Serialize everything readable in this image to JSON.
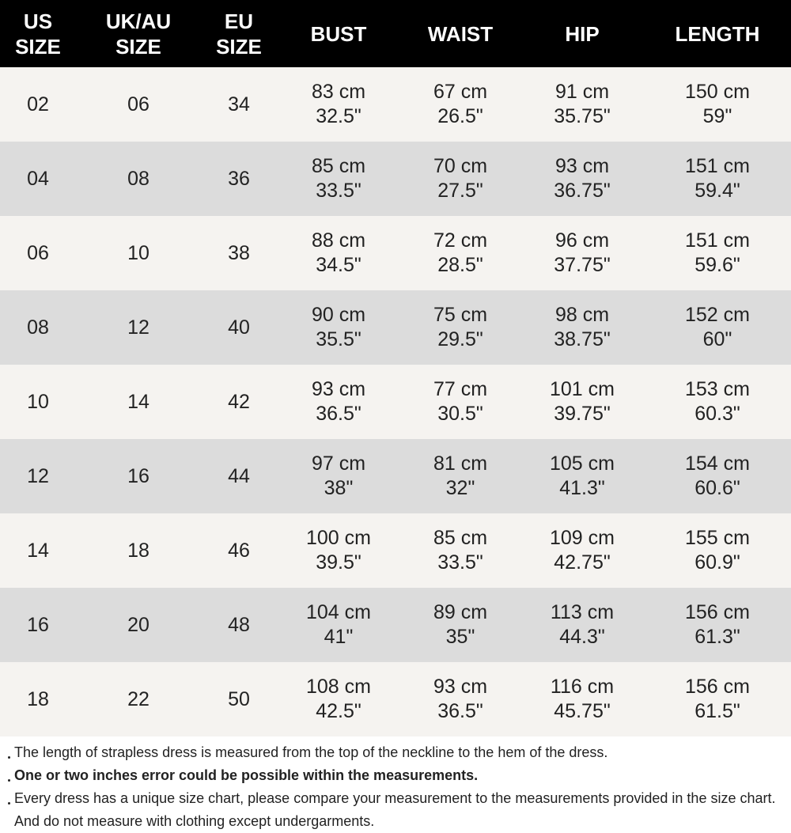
{
  "table": {
    "header": [
      "US SIZE",
      "UK/AU SIZE",
      "EU SIZE",
      "BUST",
      "WAIST",
      "HIP",
      "LENGTH"
    ],
    "rows": [
      [
        "02",
        "06",
        "34",
        [
          "83 cm",
          "32.5\""
        ],
        [
          "67 cm",
          "26.5\""
        ],
        [
          "91 cm",
          "35.75\""
        ],
        [
          "150 cm",
          "59\""
        ]
      ],
      [
        "04",
        "08",
        "36",
        [
          "85 cm",
          "33.5\""
        ],
        [
          "70 cm",
          "27.5\""
        ],
        [
          "93 cm",
          "36.75\""
        ],
        [
          "151 cm",
          "59.4\""
        ]
      ],
      [
        "06",
        "10",
        "38",
        [
          "88 cm",
          "34.5\""
        ],
        [
          "72 cm",
          "28.5\""
        ],
        [
          "96 cm",
          "37.75\""
        ],
        [
          "151 cm",
          "59.6\""
        ]
      ],
      [
        "08",
        "12",
        "40",
        [
          "90 cm",
          "35.5\""
        ],
        [
          "75 cm",
          "29.5\""
        ],
        [
          "98 cm",
          "38.75\""
        ],
        [
          "152 cm",
          "60\""
        ]
      ],
      [
        "10",
        "14",
        "42",
        [
          "93 cm",
          "36.5\""
        ],
        [
          "77 cm",
          "30.5\""
        ],
        [
          "101 cm",
          "39.75\""
        ],
        [
          "153 cm",
          "60.3\""
        ]
      ],
      [
        "12",
        "16",
        "44",
        [
          "97 cm",
          "38\""
        ],
        [
          "81 cm",
          "32\""
        ],
        [
          "105 cm",
          "41.3\""
        ],
        [
          "154 cm",
          "60.6\""
        ]
      ],
      [
        "14",
        "18",
        "46",
        [
          "100 cm",
          "39.5\""
        ],
        [
          "85 cm",
          "33.5\""
        ],
        [
          "109 cm",
          "42.75\""
        ],
        [
          "155 cm",
          "60.9\""
        ]
      ],
      [
        "16",
        "20",
        "48",
        [
          "104 cm",
          "41\""
        ],
        [
          "89 cm",
          "35\""
        ],
        [
          "113 cm",
          "44.3\""
        ],
        [
          "156 cm",
          "61.3\""
        ]
      ],
      [
        "18",
        "22",
        "50",
        [
          "108 cm",
          "42.5\""
        ],
        [
          "93 cm",
          "36.5\""
        ],
        [
          "116 cm",
          "45.75\""
        ],
        [
          "156 cm",
          "61.5\""
        ]
      ]
    ]
  },
  "notes": [
    {
      "text": "The length of strapless dress is measured from the top of the neckline to the hem of the dress.",
      "bold": false
    },
    {
      "text": "One or two inches error could be possible within the measurements.",
      "bold": true
    },
    {
      "text": "Every dress has a unique size chart, please compare your measurement to the measurements provided in the size chart. And do not measure with clothing except undergarments.",
      "bold": false
    }
  ]
}
